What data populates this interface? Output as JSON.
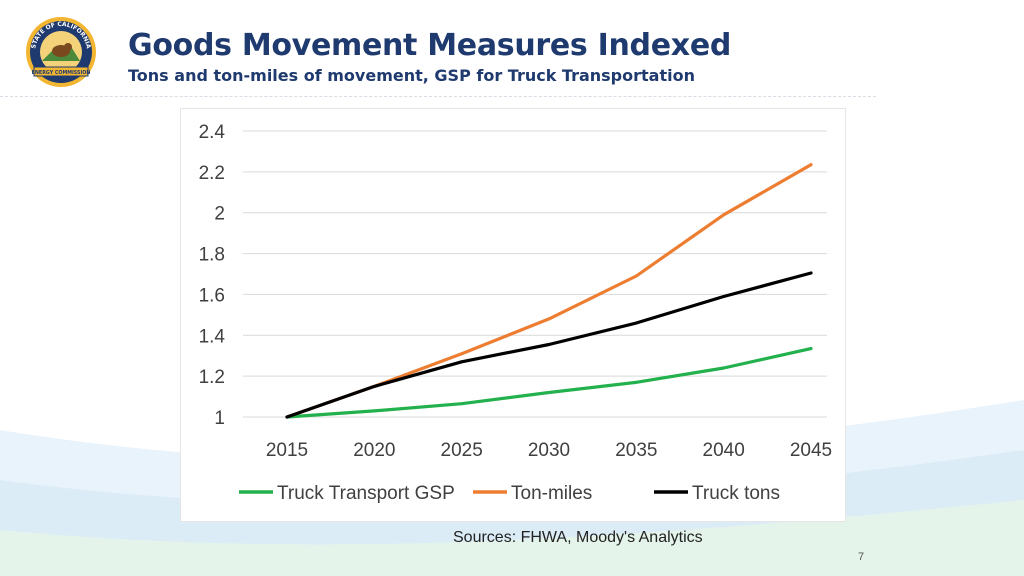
{
  "slide": {
    "title": "Goods Movement Measures Indexed",
    "subtitle": "Tons and ton-miles of movement, GSP for Truck Transportation",
    "sources": "Sources: FHWA, Moody's Analytics",
    "page_number": "7"
  },
  "logo": {
    "top_text": "STATE OF CALIFORNIA",
    "bottom_text": "ENERGY COMMISSION"
  },
  "colors": {
    "title": "#1f3a6e",
    "gsp": "#22b14c",
    "ton_miles": "#ed7d31",
    "truck_tons": "#000000"
  },
  "chart_data": {
    "type": "line",
    "title": "",
    "xlabel": "",
    "ylabel": "",
    "x": [
      "2015",
      "2020",
      "2025",
      "2030",
      "2035",
      "2040",
      "2045"
    ],
    "ylim": [
      1,
      2.4
    ],
    "yticks": [
      "2.4",
      "2.2",
      "2",
      "1.8",
      "1.6",
      "1.4",
      "1.2",
      "1"
    ],
    "ytick_values": [
      2.4,
      2.2,
      2.0,
      1.8,
      1.6,
      1.4,
      1.2,
      1.0
    ],
    "grid": true,
    "legend_position": "bottom",
    "series": [
      {
        "name": "Truck Transport GSP",
        "color": "#22b14c",
        "values": [
          1.0,
          1.03,
          1.065,
          1.12,
          1.17,
          1.24,
          1.335
        ]
      },
      {
        "name": "Ton-miles",
        "color": "#ed7d31",
        "values": [
          1.0,
          1.15,
          1.31,
          1.48,
          1.69,
          1.99,
          2.235
        ]
      },
      {
        "name": "Truck tons",
        "color": "#000000",
        "values": [
          1.0,
          1.15,
          1.27,
          1.355,
          1.46,
          1.59,
          1.705
        ]
      }
    ]
  }
}
